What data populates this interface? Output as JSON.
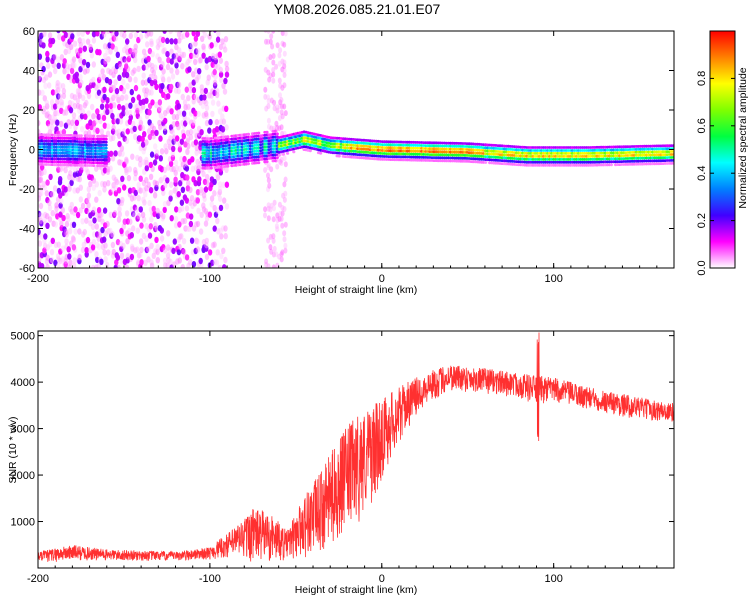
{
  "title": "YM08.2026.085.21.01.E07",
  "chart_data": [
    {
      "type": "heatmap",
      "xlabel": "Height of straight line (km)",
      "ylabel": "Frequency (Hz)",
      "xlim": [
        -200,
        170
      ],
      "ylim": [
        -60,
        60
      ],
      "x_ticks": [
        -200,
        -100,
        0,
        100
      ],
      "y_ticks": [
        -60,
        -40,
        -20,
        0,
        20,
        40,
        60
      ],
      "grid": false,
      "colorbar": {
        "label": "Normalized spectral amplitude",
        "range": [
          0,
          1
        ],
        "ticks": [
          0.0,
          0.2,
          0.4,
          0.6,
          0.8
        ],
        "tick_labels": [
          "0.0",
          "0.2",
          "0.4",
          "0.6",
          "0.8"
        ],
        "colormap": [
          "#ffffff",
          "#ff00ff",
          "#4000ff",
          "#0080ff",
          "#00ffff",
          "#00ff40",
          "#80ff00",
          "#ffff00",
          "#ff8000",
          "#ff0000"
        ]
      },
      "ridge": [
        {
          "x": -200,
          "y": 0
        },
        {
          "x": -100,
          "y": -2
        },
        {
          "x": -60,
          "y": 2
        },
        {
          "x": -45,
          "y": 5
        },
        {
          "x": -30,
          "y": 2
        },
        {
          "x": -15,
          "y": 1
        },
        {
          "x": 0,
          "y": 0
        },
        {
          "x": 50,
          "y": -1
        },
        {
          "x": 85,
          "y": -3
        },
        {
          "x": 120,
          "y": -3
        },
        {
          "x": 170,
          "y": -2
        }
      ]
    },
    {
      "type": "line",
      "xlabel": "Height of straight line (km)",
      "ylabel": "SNR (10 * v/v)",
      "xlim": [
        -200,
        170
      ],
      "ylim": [
        0,
        5100
      ],
      "x_ticks": [
        -200,
        -100,
        0,
        100
      ],
      "y_ticks": [
        1000,
        2000,
        3000,
        4000,
        5000
      ],
      "grid": false,
      "color": "#ff3030",
      "envelope": [
        {
          "x": -200,
          "lo": 100,
          "hi": 350
        },
        {
          "x": -180,
          "lo": 150,
          "hi": 500
        },
        {
          "x": -160,
          "lo": 150,
          "hi": 400
        },
        {
          "x": -120,
          "lo": 150,
          "hi": 350
        },
        {
          "x": -100,
          "lo": 180,
          "hi": 450
        },
        {
          "x": -85,
          "lo": 200,
          "hi": 900
        },
        {
          "x": -75,
          "lo": 100,
          "hi": 1300
        },
        {
          "x": -65,
          "lo": 100,
          "hi": 1200
        },
        {
          "x": -55,
          "lo": 150,
          "hi": 800
        },
        {
          "x": -45,
          "lo": 200,
          "hi": 1600
        },
        {
          "x": -35,
          "lo": 300,
          "hi": 2100
        },
        {
          "x": -25,
          "lo": 600,
          "hi": 2800
        },
        {
          "x": -15,
          "lo": 900,
          "hi": 3300
        },
        {
          "x": -5,
          "lo": 1400,
          "hi": 3500
        },
        {
          "x": 5,
          "lo": 2300,
          "hi": 3800
        },
        {
          "x": 15,
          "lo": 3000,
          "hi": 4000
        },
        {
          "x": 25,
          "lo": 3500,
          "hi": 4200
        },
        {
          "x": 40,
          "lo": 3800,
          "hi": 4400
        },
        {
          "x": 60,
          "lo": 3750,
          "hi": 4300
        },
        {
          "x": 80,
          "lo": 3650,
          "hi": 4200
        },
        {
          "x": 90,
          "lo": 3500,
          "hi": 4150
        },
        {
          "x": 100,
          "lo": 3550,
          "hi": 4100
        },
        {
          "x": 120,
          "lo": 3400,
          "hi": 3900
        },
        {
          "x": 140,
          "lo": 3250,
          "hi": 3750
        },
        {
          "x": 160,
          "lo": 3150,
          "hi": 3600
        },
        {
          "x": 170,
          "lo": 3100,
          "hi": 3550
        }
      ],
      "spikes": [
        {
          "x": 91,
          "lo": 2600,
          "hi": 5100
        }
      ]
    }
  ]
}
